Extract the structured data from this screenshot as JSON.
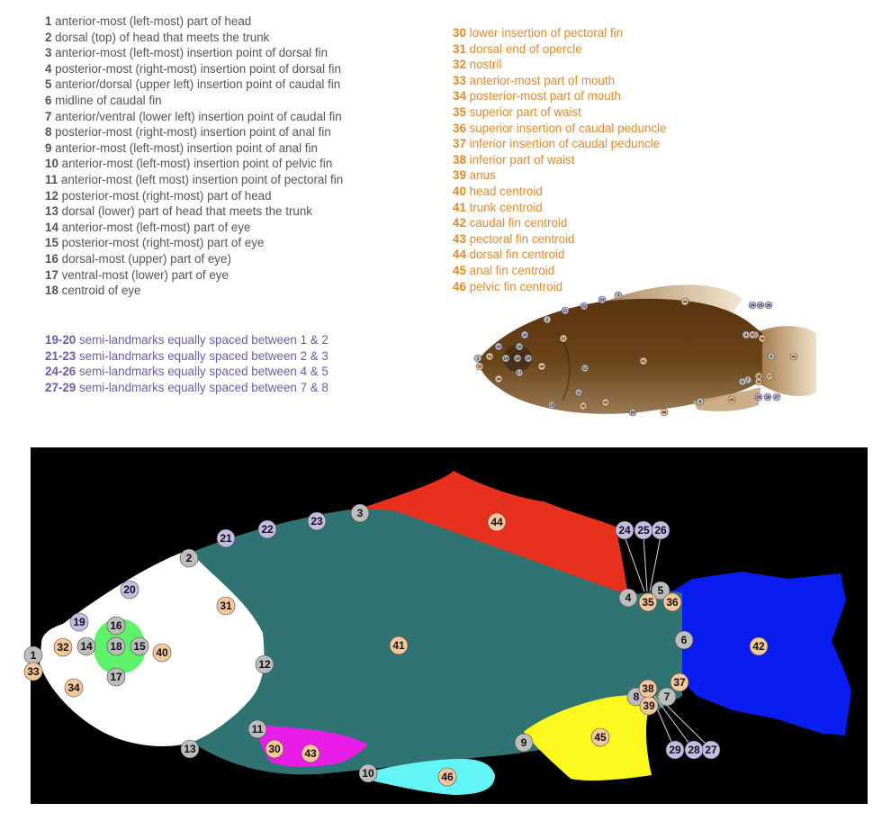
{
  "legend_gray": [
    {
      "num": "1",
      "text": "anterior-most (left-most) part of head"
    },
    {
      "num": "2",
      "text": "dorsal (top) of head that meets the trunk"
    },
    {
      "num": "3",
      "text": "anterior-most (left-most) insertion point of dorsal fin"
    },
    {
      "num": "4",
      "text": "posterior-most (right-most) insertion point of dorsal fin"
    },
    {
      "num": "5",
      "text": "anterior/dorsal (upper left) insertion point of caudal fin"
    },
    {
      "num": "6",
      "text": "midline of caudal fin"
    },
    {
      "num": "7",
      "text": "anterior/ventral (lower left) insertion point of caudal fin"
    },
    {
      "num": "8",
      "text": "posterior-most (right-most) insertion point of anal fin"
    },
    {
      "num": "9",
      "text": "anterior-most (left-most) insertion point of anal fin"
    },
    {
      "num": "10",
      "text": "anterior-most (left-most) insertion point of pelvic fin"
    },
    {
      "num": "11",
      "text": "anterior-most (left most) insertion point of pectoral fin"
    },
    {
      "num": "12",
      "text": "posterior-most (right-most) part of head"
    },
    {
      "num": "13",
      "text": "dorsal (lower) part of head that meets the trunk"
    },
    {
      "num": "14",
      "text": "anterior-most (left-most) part of eye"
    },
    {
      "num": "15",
      "text": "posterior-most (right-most) part of eye"
    },
    {
      "num": "16",
      "text": "dorsal-most (upper) part of eye)"
    },
    {
      "num": "17",
      "text": "ventral-most (lower) part of eye"
    },
    {
      "num": "18",
      "text": "centroid of eye"
    }
  ],
  "legend_purple": [
    {
      "num": "19-20",
      "text": "semi-landmarks equally spaced between 1 & 2"
    },
    {
      "num": "21-23",
      "text": "semi-landmarks equally spaced between 2 & 3"
    },
    {
      "num": "24-26",
      "text": "semi-landmarks equally spaced between 4 & 5"
    },
    {
      "num": "27-29",
      "text": "semi-landmarks equally spaced between 7 & 8"
    }
  ],
  "legend_orange": [
    {
      "num": "30",
      "text": "lower insertion of pectoral fin"
    },
    {
      "num": "31",
      "text": "dorsal end of opercle"
    },
    {
      "num": "32",
      "text": "nostril"
    },
    {
      "num": "33",
      "text": "anterior-most part of mouth"
    },
    {
      "num": "34",
      "text": "posterior-most part of mouth"
    },
    {
      "num": "35",
      "text": "superior part of waist"
    },
    {
      "num": "36",
      "text": "superior insertion of caudal peduncle"
    },
    {
      "num": "37",
      "text": "inferior insertion of caudal peduncle"
    },
    {
      "num": "38",
      "text": "inferior part of waist"
    },
    {
      "num": "39",
      "text": "anus"
    },
    {
      "num": "40",
      "text": "head centroid"
    },
    {
      "num": "41",
      "text": "trunk centroid"
    },
    {
      "num": "42",
      "text": "caudal fin centroid"
    },
    {
      "num": "43",
      "text": "pectoral fin centroid"
    },
    {
      "num": "44",
      "text": "dorsal fin centroid"
    },
    {
      "num": "45",
      "text": "anal fin centroid"
    },
    {
      "num": "46",
      "text": "pelvic fin centroid"
    }
  ],
  "colors": {
    "legend_gray": "#555555",
    "legend_purple": "#6e5ba8",
    "legend_orange": "#e0892e",
    "background": "#000000",
    "head": "#ffffff",
    "trunk": "#2f7372",
    "dorsal_fin": "#e8301f",
    "caudal_fin": "#0a1df0",
    "pectoral_fin": "#e81ee8",
    "anal_fin": "#fbf71f",
    "pelvic_fin": "#63f5f5",
    "eye": "#5ef26a",
    "marker_gray": "#bdbdbd",
    "marker_purple": "#c5bce6",
    "marker_orange": "#f6c79a"
  },
  "diagram_markers": [
    {
      "label": "1",
      "kind": "gray"
    },
    {
      "label": "2",
      "kind": "gray"
    },
    {
      "label": "3",
      "kind": "gray"
    },
    {
      "label": "4",
      "kind": "gray"
    },
    {
      "label": "5",
      "kind": "gray"
    },
    {
      "label": "6",
      "kind": "gray"
    },
    {
      "label": "7",
      "kind": "gray"
    },
    {
      "label": "8",
      "kind": "gray"
    },
    {
      "label": "9",
      "kind": "gray"
    },
    {
      "label": "10",
      "kind": "gray"
    },
    {
      "label": "11",
      "kind": "gray"
    },
    {
      "label": "12",
      "kind": "gray"
    },
    {
      "label": "13",
      "kind": "gray"
    },
    {
      "label": "14",
      "kind": "gray"
    },
    {
      "label": "15",
      "kind": "gray"
    },
    {
      "label": "16",
      "kind": "gray"
    },
    {
      "label": "17",
      "kind": "gray"
    },
    {
      "label": "18",
      "kind": "gray"
    },
    {
      "label": "19",
      "kind": "purple"
    },
    {
      "label": "20",
      "kind": "purple"
    },
    {
      "label": "21",
      "kind": "purple"
    },
    {
      "label": "22",
      "kind": "purple"
    },
    {
      "label": "23",
      "kind": "purple"
    },
    {
      "label": "24",
      "kind": "purple"
    },
    {
      "label": "25",
      "kind": "purple"
    },
    {
      "label": "26",
      "kind": "purple"
    },
    {
      "label": "27",
      "kind": "purple"
    },
    {
      "label": "28",
      "kind": "purple"
    },
    {
      "label": "29",
      "kind": "purple"
    },
    {
      "label": "30",
      "kind": "orange"
    },
    {
      "label": "31",
      "kind": "orange"
    },
    {
      "label": "32",
      "kind": "orange"
    },
    {
      "label": "33",
      "kind": "orange"
    },
    {
      "label": "34",
      "kind": "orange"
    },
    {
      "label": "35",
      "kind": "orange"
    },
    {
      "label": "36",
      "kind": "orange"
    },
    {
      "label": "37",
      "kind": "orange"
    },
    {
      "label": "38",
      "kind": "orange"
    },
    {
      "label": "39",
      "kind": "orange"
    },
    {
      "label": "40",
      "kind": "orange"
    },
    {
      "label": "41",
      "kind": "orange"
    },
    {
      "label": "42",
      "kind": "orange"
    },
    {
      "label": "43",
      "kind": "orange"
    },
    {
      "label": "44",
      "kind": "orange"
    },
    {
      "label": "45",
      "kind": "orange"
    },
    {
      "label": "46",
      "kind": "orange"
    }
  ]
}
